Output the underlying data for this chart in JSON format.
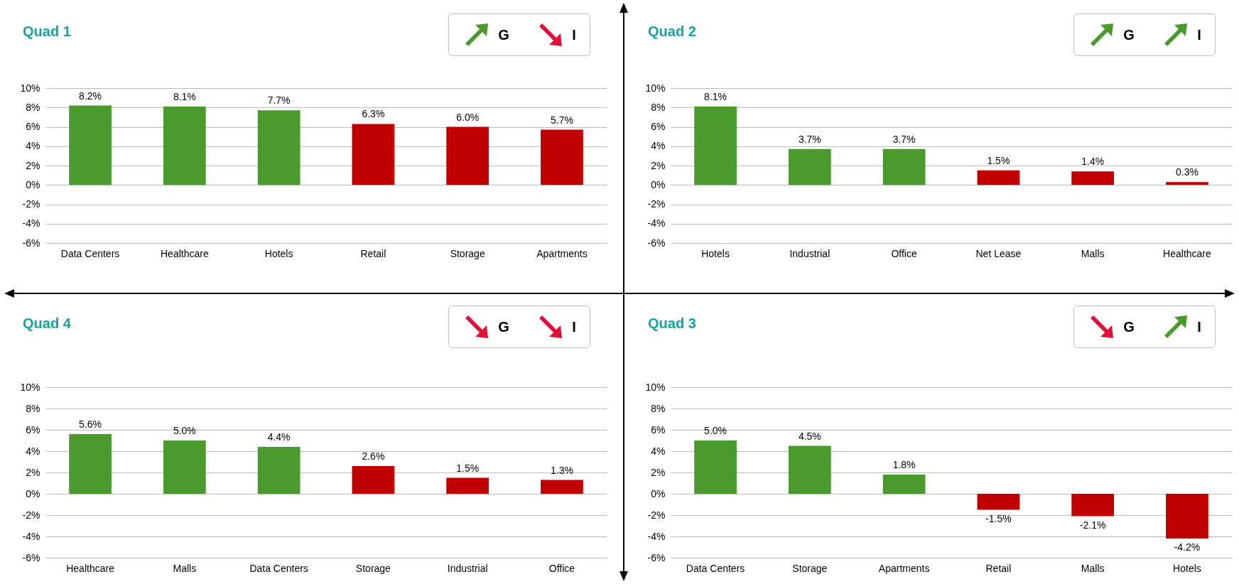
{
  "chart_data": [
    {
      "type": "bar",
      "title": "Quad 1",
      "annotations": [
        "G",
        "I"
      ],
      "categories": [
        "Data Centers",
        "Healthcare",
        "Hotels",
        "Retail",
        "Storage",
        "Apartments"
      ],
      "values": [
        8.2,
        8.1,
        7.7,
        6.3,
        6.0,
        5.7
      ],
      "colors": [
        "#4a9a2e",
        "#4a9a2e",
        "#4a9a2e",
        "#c00000",
        "#c00000",
        "#c00000"
      ],
      "value_labels": [
        "8.2%",
        "8.1%",
        "7.7%",
        "6.3%",
        "6.0%",
        "5.7%"
      ],
      "ylim": [
        -6,
        10
      ],
      "yticks": [
        {
          "value": -6,
          "label": "-6%"
        },
        {
          "value": -4,
          "label": "-4%"
        },
        {
          "value": -2,
          "label": "-2%"
        },
        {
          "value": 0,
          "label": "0%"
        },
        {
          "value": 2,
          "label": "2%"
        },
        {
          "value": 4,
          "label": "4%"
        },
        {
          "value": 6,
          "label": "6%"
        },
        {
          "value": 8,
          "label": "8%"
        },
        {
          "value": 10,
          "label": "10%"
        }
      ],
      "grid": "y"
    },
    {
      "type": "bar",
      "title": "Quad 2",
      "annotations": [
        "G",
        "I"
      ],
      "categories": [
        "Hotels",
        "Industrial",
        "Office",
        "Net Lease",
        "Malls",
        "Healthcare"
      ],
      "values": [
        8.1,
        3.7,
        3.7,
        1.5,
        1.4,
        0.3
      ],
      "colors": [
        "#4a9a2e",
        "#4a9a2e",
        "#4a9a2e",
        "#c00000",
        "#c00000",
        "#c00000"
      ],
      "value_labels": [
        "8.1%",
        "3.7%",
        "3.7%",
        "1.5%",
        "1.4%",
        "0.3%"
      ],
      "ylim": [
        -6,
        10
      ],
      "yticks": [
        {
          "value": -6,
          "label": "-6%"
        },
        {
          "value": -4,
          "label": "-4%"
        },
        {
          "value": -2,
          "label": "-2%"
        },
        {
          "value": 0,
          "label": "0%"
        },
        {
          "value": 2,
          "label": "2%"
        },
        {
          "value": 4,
          "label": "4%"
        },
        {
          "value": 6,
          "label": "6%"
        },
        {
          "value": 8,
          "label": "8%"
        },
        {
          "value": 10,
          "label": "10%"
        }
      ],
      "grid": "y"
    },
    {
      "type": "bar",
      "title": "Quad 4",
      "annotations": [
        "G",
        "I"
      ],
      "categories": [
        "Healthcare",
        "Malls",
        "Data Centers",
        "Storage",
        "Industrial",
        "Office"
      ],
      "values": [
        5.6,
        5.0,
        4.4,
        2.6,
        1.5,
        1.3
      ],
      "colors": [
        "#4a9a2e",
        "#4a9a2e",
        "#4a9a2e",
        "#c00000",
        "#c00000",
        "#c00000"
      ],
      "value_labels": [
        "5.6%",
        "5.0%",
        "4.4%",
        "2.6%",
        "1.5%",
        "1.3%"
      ],
      "ylim": [
        -6,
        10
      ],
      "yticks": [
        {
          "value": -6,
          "label": "-6%"
        },
        {
          "value": -4,
          "label": "-4%"
        },
        {
          "value": -2,
          "label": "-2%"
        },
        {
          "value": 0,
          "label": "0%"
        },
        {
          "value": 2,
          "label": "2%"
        },
        {
          "value": 4,
          "label": "4%"
        },
        {
          "value": 6,
          "label": "6%"
        },
        {
          "value": 8,
          "label": "8%"
        },
        {
          "value": 10,
          "label": "10%"
        }
      ],
      "grid": "y"
    },
    {
      "type": "bar",
      "title": "Quad 3",
      "annotations": [
        "G",
        "I"
      ],
      "categories": [
        "Data Centers",
        "Storage",
        "Apartments",
        "Retail",
        "Malls",
        "Hotels"
      ],
      "values": [
        5.0,
        4.5,
        1.8,
        -1.5,
        -2.1,
        -4.2
      ],
      "colors": [
        "#4a9a2e",
        "#4a9a2e",
        "#4a9a2e",
        "#c00000",
        "#c00000",
        "#c00000"
      ],
      "value_labels": [
        "5.0%",
        "4.5%",
        "1.8%",
        "-1.5%",
        "-2.1%",
        "-4.2%"
      ],
      "ylim": [
        -6,
        10
      ],
      "yticks": [
        {
          "value": -6,
          "label": "-6%"
        },
        {
          "value": -4,
          "label": "-4%"
        },
        {
          "value": -2,
          "label": "-2%"
        },
        {
          "value": 0,
          "label": "0%"
        },
        {
          "value": 2,
          "label": "2%"
        },
        {
          "value": 4,
          "label": "4%"
        },
        {
          "value": 6,
          "label": "6%"
        },
        {
          "value": 8,
          "label": "8%"
        },
        {
          "value": 10,
          "label": "10%"
        }
      ],
      "grid": "y"
    }
  ]
}
